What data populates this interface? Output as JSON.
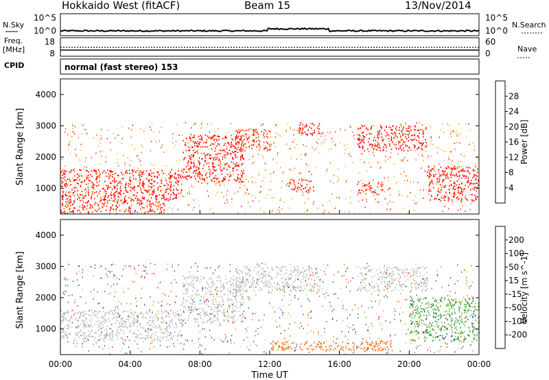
{
  "header": {
    "title": "Hokkaido West (fitACF)",
    "beam": "Beam 15",
    "date": "13/Nov/2014"
  },
  "summary_panels": {
    "nsky_label": "N.Sky",
    "nsky_ticks": [
      "10^5",
      "10^0"
    ],
    "nsky_right_ticks": [
      "10^5",
      "10^0"
    ],
    "nsearch_label": "N.Search",
    "freq_label_line1": "Freq.",
    "freq_label_line2": "[MHz]",
    "freq_ticks": [
      "18",
      "8"
    ],
    "nave_ticks": [
      "60",
      "0"
    ],
    "nave_label": "Nave",
    "cpid_label": "CPID",
    "cpid_value": "normal (fast stereo) 153"
  },
  "colors": {
    "power_scale": [
      "#0000ff",
      "#1f4f9f",
      "#2e6b5a",
      "#3fa24a",
      "#d6d000",
      "#f0a000",
      "#ff6a00",
      "#ff2a00",
      "#ff0000"
    ],
    "velocity_scale": [
      "#2020a0",
      "#2a4fae",
      "#2e6b5a",
      "#5bbf3a",
      "#c0c0c0",
      "#f0a000",
      "#ff6a00",
      "#ff2000"
    ]
  },
  "chart_data": [
    {
      "type": "heatmap",
      "panel": "power",
      "ylabel": "Slant Range [km]",
      "xlabel": "",
      "ylim": [
        180,
        4500
      ],
      "yticks": [
        1000,
        2000,
        3000,
        4000
      ],
      "colorbar_label": "Power [dB]",
      "colorbar_ticks": [
        4,
        8,
        12,
        16,
        20,
        24,
        28
      ],
      "colorbar_range": [
        0,
        30
      ],
      "bands": [
        {
          "t0": 0.0,
          "t1": 7.0,
          "r0": 600,
          "r1": 1600,
          "level": 28
        },
        {
          "t0": 0.0,
          "t1": 6.0,
          "r0": 200,
          "r1": 600,
          "level": 26
        },
        {
          "t0": 7.0,
          "t1": 10.5,
          "r0": 1200,
          "r1": 2700,
          "level": 28
        },
        {
          "t0": 10.0,
          "t1": 12.0,
          "r0": 2200,
          "r1": 2900,
          "level": 26
        },
        {
          "t0": 13.5,
          "t1": 15.0,
          "r0": 2700,
          "r1": 3100,
          "level": 28
        },
        {
          "t0": 17.0,
          "t1": 21.0,
          "r0": 2200,
          "r1": 3000,
          "level": 28
        },
        {
          "t0": 21.0,
          "t1": 24.0,
          "r0": 600,
          "r1": 1700,
          "level": 28
        },
        {
          "t0": 13.0,
          "t1": 14.5,
          "r0": 900,
          "r1": 1300,
          "level": 26
        },
        {
          "t0": 17.0,
          "t1": 18.5,
          "r0": 800,
          "r1": 1200,
          "level": 26
        }
      ]
    },
    {
      "type": "heatmap",
      "panel": "velocity",
      "ylabel": "Slant Range [km]",
      "xlabel": "Time UT",
      "ylim": [
        180,
        4500
      ],
      "yticks": [
        1000,
        2000,
        3000,
        4000
      ],
      "xticks": [
        "00:00",
        "04:00",
        "08:00",
        "12:00",
        "16:00",
        "20:00",
        "00:00"
      ],
      "colorbar_label": "Velocity [m s^-1]",
      "colorbar_ticks": [
        200,
        100,
        50,
        15,
        -15,
        -50,
        -100,
        -200
      ],
      "bands": [
        {
          "t0": 0.0,
          "t1": 7.0,
          "r0": 600,
          "r1": 1600,
          "level": -10
        },
        {
          "t0": 7.0,
          "t1": 10.5,
          "r0": 1200,
          "r1": 2700,
          "level": 0
        },
        {
          "t0": 10.0,
          "t1": 15.0,
          "r0": 2200,
          "r1": 3000,
          "level": 5
        },
        {
          "t0": 17.0,
          "t1": 21.0,
          "r0": 2200,
          "r1": 3000,
          "level": 5
        },
        {
          "t0": 20.0,
          "t1": 24.0,
          "r0": 600,
          "r1": 2000,
          "level": 30
        },
        {
          "t0": 12.0,
          "t1": 19.0,
          "r0": 300,
          "r1": 600,
          "level": -60
        }
      ]
    }
  ]
}
